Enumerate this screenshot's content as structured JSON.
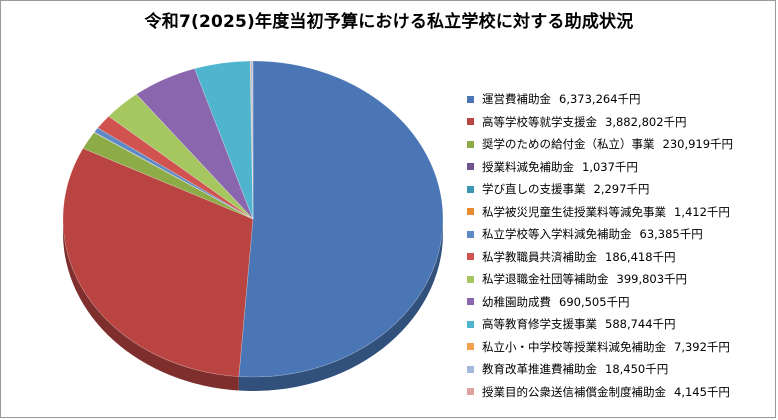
{
  "chart_data": {
    "type": "pie",
    "title": "令和7(2025)年度当初予算における私立学校に対する助成状況",
    "unit": "千円",
    "slices": [
      {
        "label": "運営費補助金",
        "value": 6373264,
        "display": "6,373,264千円",
        "color": "#4a76b6"
      },
      {
        "label": "高等学校等就学支援金",
        "value": 3882802,
        "display": "3,882,802千円",
        "color": "#b94441"
      },
      {
        "label": "奨学のための給付金（私立）事業",
        "value": 230919,
        "display": "230,919千円",
        "color": "#8dac48"
      },
      {
        "label": "授業料減免補助金",
        "value": 1037,
        "display": "1,037千円",
        "color": "#6f5490"
      },
      {
        "label": "学び直しの支援事業",
        "value": 2297,
        "display": "2,297千円",
        "color": "#3d97b0"
      },
      {
        "label": "私学被災児童生徒授業料等減免事業",
        "value": 1412,
        "display": "1,412千円",
        "color": "#ea8a2e"
      },
      {
        "label": "私立学校等入学料減免補助金",
        "value": 63385,
        "display": "63,385千円",
        "color": "#5d8ac6"
      },
      {
        "label": "私学教職員共済補助金",
        "value": 186418,
        "display": "186,418千円",
        "color": "#d05350"
      },
      {
        "label": "私学退職金社団等補助金",
        "value": 399803,
        "display": "399,803千円",
        "color": "#a6c760"
      },
      {
        "label": "幼稚園助成費",
        "value": 690505,
        "display": "690,505千円",
        "color": "#8966ad"
      },
      {
        "label": "高等教育修学支援事業",
        "value": 588744,
        "display": "588,744千円",
        "color": "#4fb5cf"
      },
      {
        "label": "私立小・中学校等授業料減免補助金",
        "value": 7392,
        "display": "7,392千円",
        "color": "#f5a04f"
      },
      {
        "label": "教育改革推進費補助金",
        "value": 18450,
        "display": "18,450千円",
        "color": "#a5b8dd"
      },
      {
        "label": "授業目的公衆送信補償金制度補助金",
        "value": 4145,
        "display": "4,145千円",
        "color": "#dea3a1"
      }
    ]
  }
}
